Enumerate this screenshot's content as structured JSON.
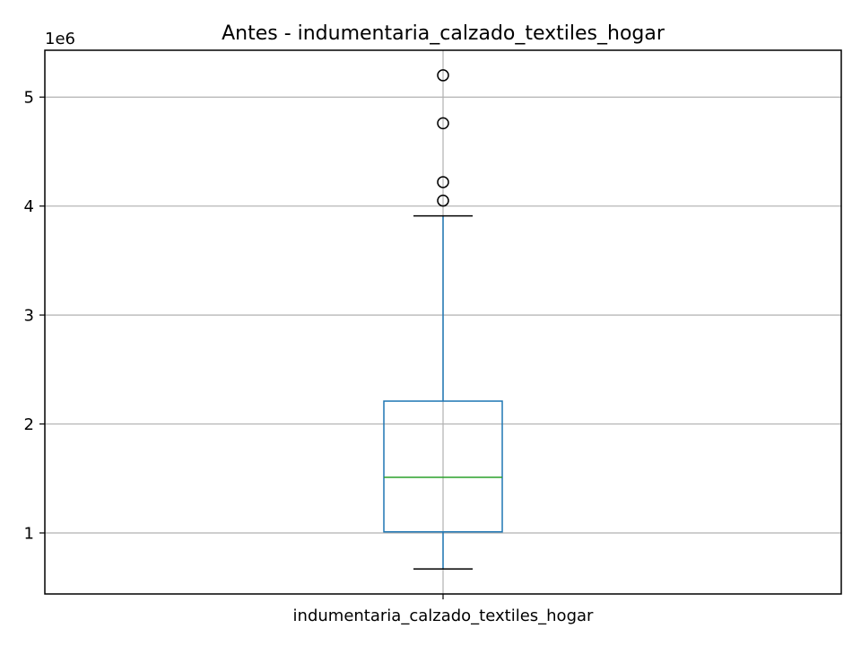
{
  "chart_data": {
    "type": "box",
    "title": "Antes - indumentaria_calzado_textiles_hogar",
    "xlabel": "",
    "ylabel": "",
    "y_offset_label": "1e6",
    "y_scale": 1000000,
    "ylim": [
      440000,
      5430000
    ],
    "yticks": [
      1,
      2,
      3,
      4,
      5
    ],
    "grid": true,
    "categories": [
      "indumentaria_calzado_textiles_hogar"
    ],
    "boxes": [
      {
        "category": "indumentaria_calzado_textiles_hogar",
        "whisker_low": 670000,
        "q1": 1010000,
        "median": 1510000,
        "q3": 2210000,
        "whisker_high": 3910000,
        "outliers": [
          4050000,
          4220000,
          4760000,
          5200000
        ]
      }
    ],
    "colors": {
      "box": "#1f77b4",
      "median": "#2ca02c",
      "whisker_cap": "#000000",
      "grid": "#b0b0b0",
      "outlier_edge": "#000000"
    }
  }
}
